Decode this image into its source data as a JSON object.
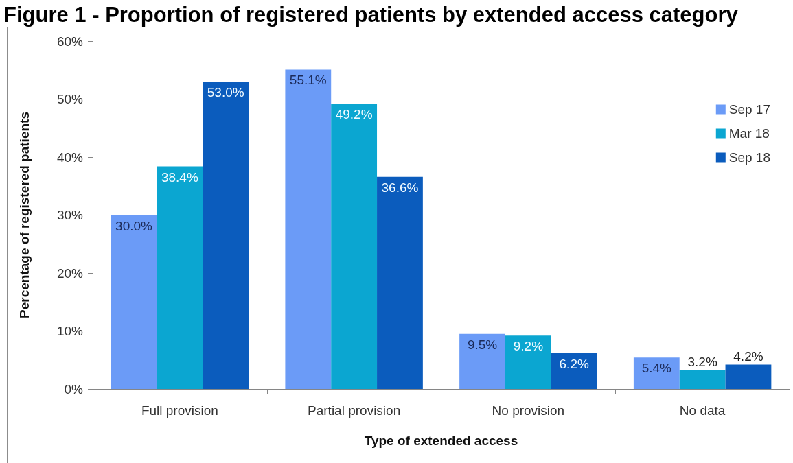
{
  "chart_data": {
    "type": "bar",
    "title": "Figure 1 - Proportion of registered patients by extended access category",
    "xlabel": "Type of extended access",
    "ylabel": "Percentage of registered patients",
    "categories": [
      "Full provision",
      "Partial provision",
      "No provision",
      "No data"
    ],
    "series": [
      {
        "name": "Sep 17",
        "color": "#6b9bf7",
        "values": [
          30.0,
          55.1,
          9.5,
          5.4
        ],
        "value_labels": [
          "30.0%",
          "55.1%",
          "9.5%",
          "5.4%"
        ]
      },
      {
        "name": "Mar 18",
        "color": "#0ba6d1",
        "values": [
          38.4,
          49.2,
          9.2,
          3.2
        ],
        "value_labels": [
          "38.4%",
          "49.2%",
          "9.2%",
          "3.2%"
        ]
      },
      {
        "name": "Sep 18",
        "color": "#0b5cbd",
        "values": [
          53.0,
          36.6,
          6.2,
          4.2
        ],
        "value_labels": [
          "53.0%",
          "36.6%",
          "6.2%",
          "4.2%"
        ]
      }
    ],
    "ylim": [
      0,
      60
    ],
    "yticks": [
      {
        "value": 0,
        "label": "0%"
      },
      {
        "value": 10,
        "label": "10%"
      },
      {
        "value": 20,
        "label": "20%"
      },
      {
        "value": 30,
        "label": "30%"
      },
      {
        "value": 40,
        "label": "40%"
      },
      {
        "value": 50,
        "label": "50%"
      },
      {
        "value": 60,
        "label": "60%"
      }
    ],
    "grid": false,
    "legend": "top right"
  }
}
